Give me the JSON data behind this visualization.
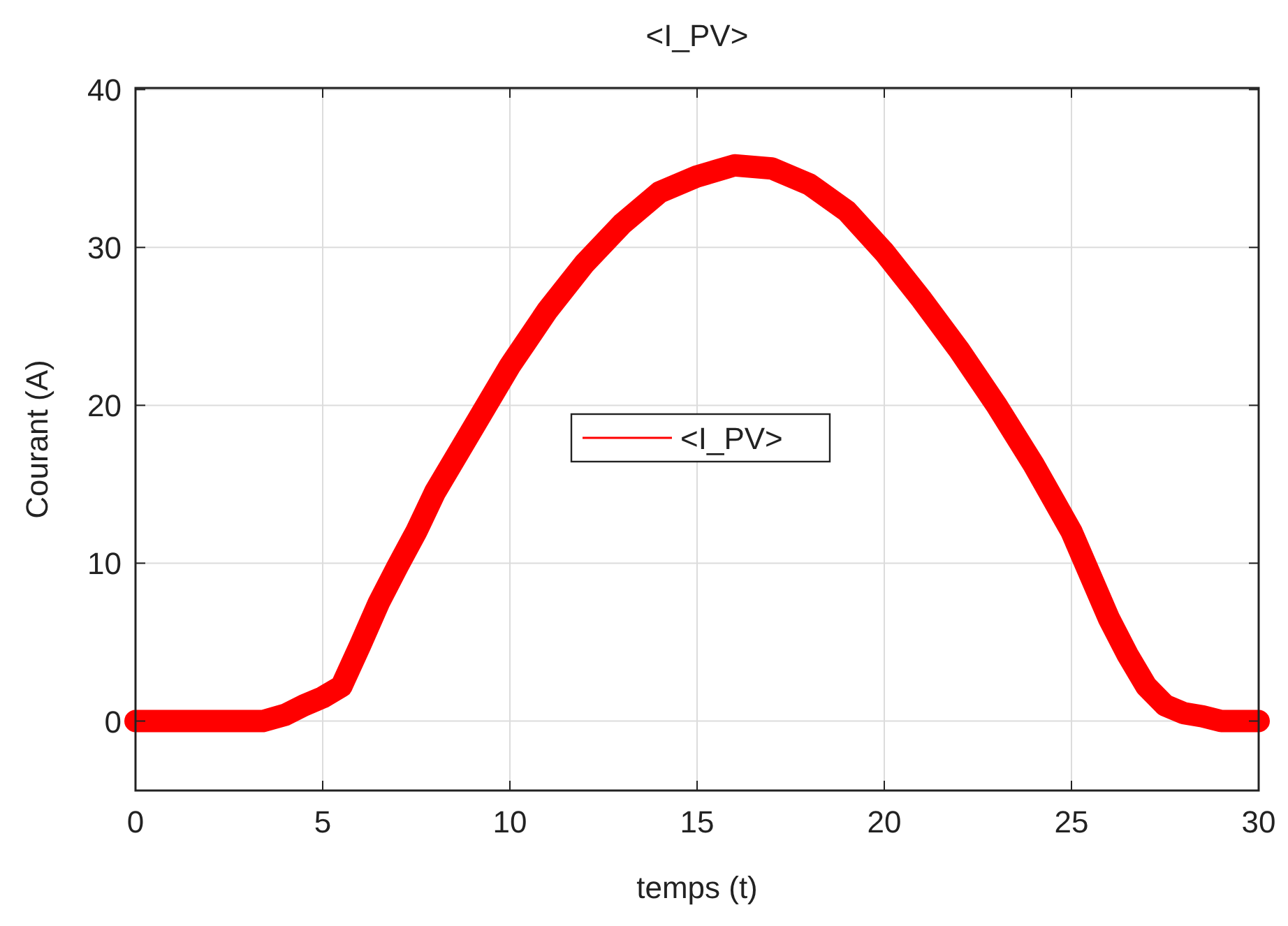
{
  "chart_data": {
    "type": "line",
    "title": "<I_PV>",
    "xlabel": "temps (t)",
    "ylabel": "Courant (A)",
    "xlim": [
      0,
      30
    ],
    "xticks": [
      0,
      5,
      10,
      15,
      20,
      25,
      30
    ],
    "ylim": [
      -4.4,
      40.1
    ],
    "yticks": [
      0,
      10,
      20,
      30,
      40
    ],
    "grid": true,
    "legend": "center",
    "line_style": "solid",
    "series": [
      {
        "name": "<I_PV>",
        "color": "#ff0000",
        "x": [
          0,
          1,
          2,
          3,
          3.4,
          4,
          4.5,
          5,
          5.5,
          6,
          6.5,
          7,
          7.5,
          8,
          9,
          10,
          11,
          12,
          13,
          14,
          15,
          16,
          17,
          18,
          19,
          20,
          21,
          22,
          23,
          24,
          25,
          26,
          26.5,
          27,
          27.5,
          28,
          28.5,
          29,
          29.5,
          30
        ],
        "values": [
          0,
          0,
          0,
          0,
          0,
          0.4,
          1,
          1.5,
          2.2,
          4.8,
          7.5,
          9.8,
          12,
          14.5,
          18.5,
          22.5,
          26,
          29,
          31.5,
          33.5,
          34.5,
          35.2,
          35,
          34,
          32.3,
          29.7,
          26.7,
          23.5,
          20,
          16.2,
          12,
          6.5,
          4.2,
          2.2,
          1,
          0.5,
          0.3,
          0,
          0,
          0
        ]
      }
    ]
  }
}
